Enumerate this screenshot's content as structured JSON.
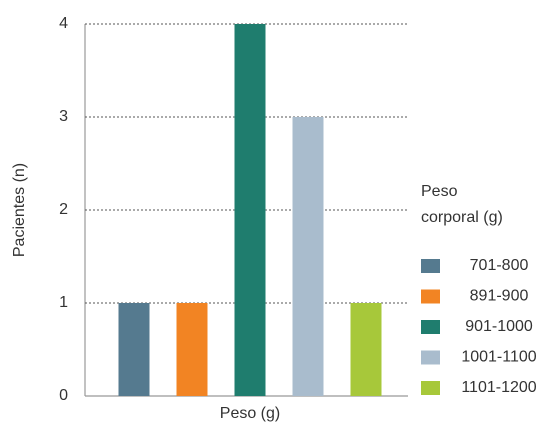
{
  "chart_data": {
    "type": "bar",
    "categories": [
      "701-800",
      "891-900",
      "901-1000",
      "1001-1100",
      "1101-1200"
    ],
    "values": [
      1,
      1,
      4,
      3,
      1
    ],
    "colors": [
      "#557a8f",
      "#f28423",
      "#1f7d6e",
      "#a9bccd",
      "#a7c83a"
    ],
    "ylim": [
      0,
      4
    ],
    "yticks": [
      0,
      1,
      2,
      3,
      4
    ],
    "grid": true,
    "x_label": "Peso (g)",
    "y_label": "Pacientes (n)",
    "legend_title": [
      "Peso",
      "corporal (g)"
    ]
  }
}
